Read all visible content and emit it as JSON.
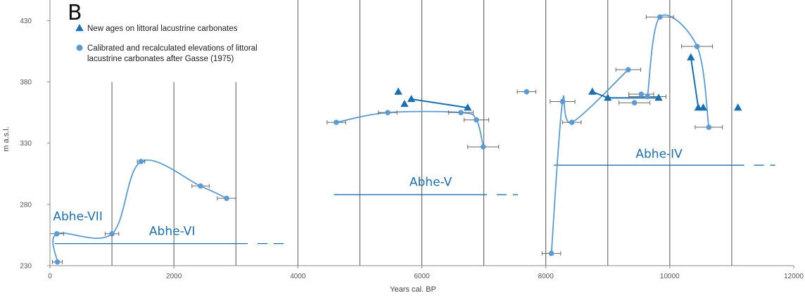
{
  "chart_data": {
    "type": "scatter",
    "panel_label": "B",
    "xlabel": "Years cal. BP",
    "ylabel": "m a.s.l.",
    "xlim": [
      0,
      12000
    ],
    "ylim": [
      230,
      440
    ],
    "x_ticks": [
      0,
      2000,
      4000,
      6000,
      8000,
      10000,
      12000
    ],
    "y_ticks": [
      230,
      280,
      330,
      380,
      430
    ],
    "grid": "vertical lines every 1000 years",
    "colors": {
      "dark": "#1a6fb0",
      "light": "#5b9bd5",
      "error_bar": "#666666",
      "grid": "#555555"
    },
    "legend": {
      "placement": "top-left",
      "entries": [
        {
          "marker": "triangle",
          "color": "#1a6fb0",
          "lines": [
            "New ages on littoral lacustrine carbonates"
          ]
        },
        {
          "marker": "circle",
          "color": "#5b9bd5",
          "lines": [
            "Calibrated and recalculated elevations of littoral",
            "lacustrine carbonates after Gasse (1975)"
          ]
        }
      ]
    },
    "series": [
      {
        "name": "New ages on littoral lacustrine carbonates",
        "marker": "triangle",
        "color": "#1a6fb0",
        "points": [
          {
            "x": 5620,
            "y": 372
          },
          {
            "x": 5720,
            "y": 362
          },
          {
            "x": 5830,
            "y": 366
          },
          {
            "x": 6740,
            "y": 359
          },
          {
            "x": 8750,
            "y": 372
          },
          {
            "x": 9000,
            "y": 367
          },
          {
            "x": 9820,
            "y": 367
          },
          {
            "x": 10340,
            "y": 400
          },
          {
            "x": 10460,
            "y": 359
          },
          {
            "x": 10540,
            "y": 359
          },
          {
            "x": 11100,
            "y": 359
          }
        ]
      },
      {
        "name": "Calibrated and recalculated elevations of littoral lacustrine carbonates after Gasse (1975)",
        "marker": "circle",
        "color": "#5b9bd5",
        "points": [
          {
            "x": 120,
            "y": 233,
            "err": 80
          },
          {
            "x": 110,
            "y": 256,
            "err": 110
          },
          {
            "x": 1000,
            "y": 256,
            "err": 110
          },
          {
            "x": 1470,
            "y": 315,
            "err": 60
          },
          {
            "x": 2430,
            "y": 295,
            "err": 140
          },
          {
            "x": 2850,
            "y": 285,
            "err": 150
          },
          {
            "x": 4620,
            "y": 347,
            "err": 150
          },
          {
            "x": 5450,
            "y": 355,
            "err": 150
          },
          {
            "x": 6630,
            "y": 355,
            "err": 200
          },
          {
            "x": 6880,
            "y": 349,
            "err": 200
          },
          {
            "x": 6990,
            "y": 327,
            "err": 250
          },
          {
            "x": 7690,
            "y": 372,
            "err": 150
          },
          {
            "x": 8090,
            "y": 240,
            "err": 150
          },
          {
            "x": 8270,
            "y": 364,
            "err": 200
          },
          {
            "x": 8420,
            "y": 347,
            "err": 150
          },
          {
            "x": 9330,
            "y": 390,
            "err": 200
          },
          {
            "x": 9430,
            "y": 363,
            "err": 250
          },
          {
            "x": 9540,
            "y": 370,
            "err": 200
          },
          {
            "x": 9640,
            "y": 368,
            "err": 300
          },
          {
            "x": 9840,
            "y": 433,
            "err": 220
          },
          {
            "x": 10440,
            "y": 409,
            "err": 250
          },
          {
            "x": 10630,
            "y": 343,
            "err": 220
          }
        ]
      }
    ],
    "curves": [
      {
        "color": "#5b9bd5",
        "points": [
          [
            120,
            233
          ],
          [
            110,
            256
          ],
          [
            1000,
            256
          ],
          [
            1470,
            315
          ],
          [
            2430,
            295
          ],
          [
            2850,
            285
          ]
        ]
      },
      {
        "color": "#5b9bd5",
        "points": [
          [
            4620,
            347
          ],
          [
            5450,
            355
          ],
          [
            6630,
            355
          ],
          [
            6880,
            349
          ],
          [
            6990,
            327
          ]
        ]
      },
      {
        "color": "#5b9bd5",
        "points": [
          [
            8090,
            240
          ],
          [
            8270,
            364
          ],
          [
            8420,
            347
          ],
          [
            9330,
            390
          ]
        ]
      },
      {
        "color": "#5b9bd5",
        "points": [
          [
            9640,
            368
          ],
          [
            9840,
            433
          ],
          [
            10440,
            409
          ],
          [
            10630,
            343
          ]
        ]
      }
    ],
    "connector_lines": [
      {
        "color": "#1a6fb0",
        "points": [
          [
            5830,
            366
          ],
          [
            6740,
            359
          ]
        ]
      },
      {
        "color": "#1a6fb0",
        "points": [
          [
            8750,
            372
          ],
          [
            9000,
            367
          ],
          [
            9820,
            367
          ]
        ]
      },
      {
        "color": "#1a6fb0",
        "points": [
          [
            10340,
            400
          ],
          [
            10460,
            359
          ]
        ]
      }
    ],
    "levels": [
      {
        "label": "Abhe-VII",
        "color": "#1a6fb0",
        "label_x": 50,
        "label_y": 267
      },
      {
        "label": "Abhe-VI",
        "color": "#1a6fb0",
        "y": 248,
        "x_start": 80,
        "x_end": 3190,
        "dash_end": 3790,
        "label_x": 1600,
        "label_y": 255
      },
      {
        "label": "Abhe-V",
        "color": "#1a6fb0",
        "y": 288,
        "x_start": 4580,
        "x_end": 7050,
        "dash_end": 7550,
        "label_x": 5800,
        "label_y": 295
      },
      {
        "label": "Abhe-IV",
        "color": "#1a6fb0",
        "y": 312,
        "x_start": 8130,
        "x_end": 11200,
        "dash_end": 11700,
        "label_x": 9450,
        "label_y": 318
      }
    ],
    "partial_vertical_lines": [
      {
        "x": 1000,
        "y_top": 380
      },
      {
        "x": 2000,
        "y_top": 380
      },
      {
        "x": 3000,
        "y_top": 380
      }
    ],
    "full_vertical_lines": [
      4000,
      5000,
      6000,
      7000,
      8000,
      9000,
      10000,
      11000
    ]
  }
}
